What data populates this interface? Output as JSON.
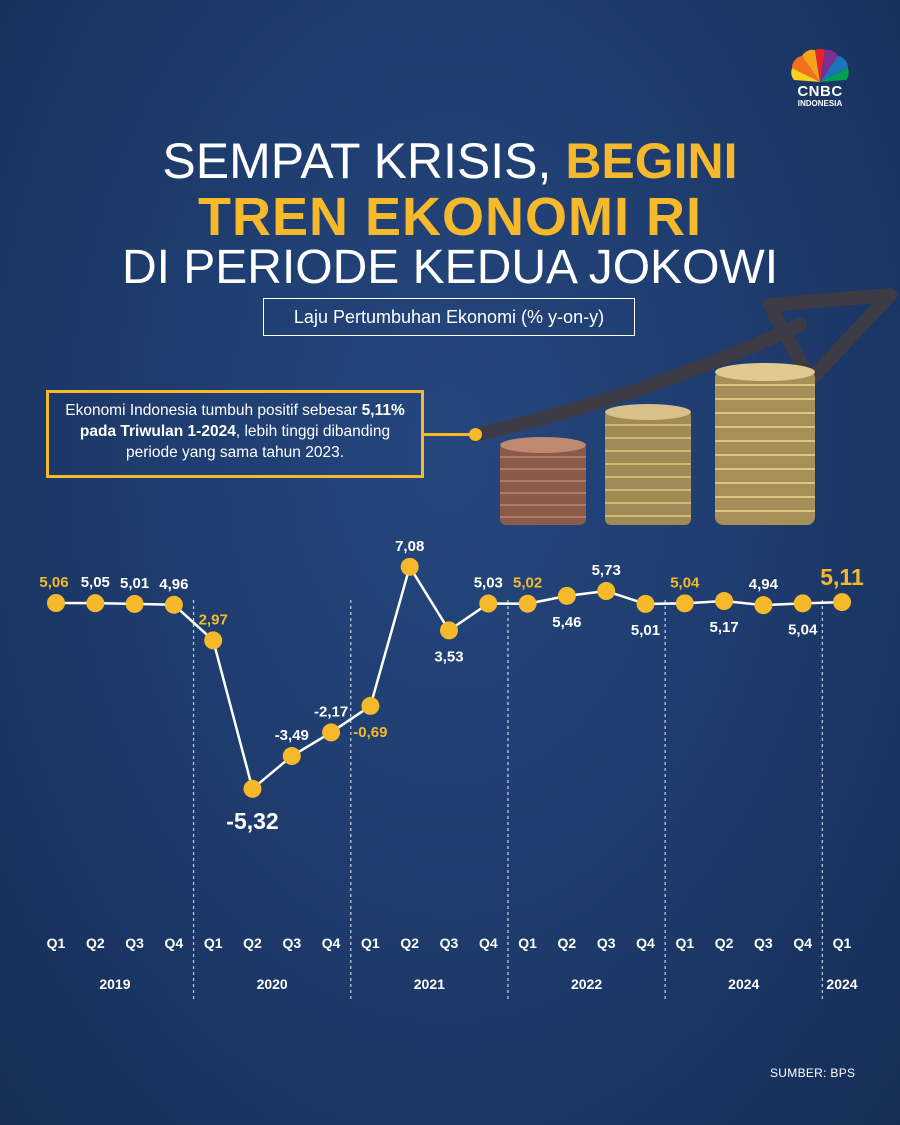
{
  "logo": {
    "text": "CNBC",
    "sub": "INDONESIA"
  },
  "title": {
    "line1_plain": "SEMPAT KRISIS, ",
    "line1_highlight": "BEGINI",
    "line2": "TREN EKONOMI RI",
    "line3": "DI PERIODE KEDUA JOKOWI"
  },
  "subtitle": "Laju Pertumbuhan Ekonomi (% y-on-y)",
  "callout": {
    "text_before": "Ekonomi Indonesia tumbuh positif sebesar ",
    "text_bold": "5,11% pada Triwulan 1-2024",
    "text_after": ", lebih tinggi dibanding periode yang sama tahun 2023."
  },
  "source": "SUMBER: BPS",
  "colors": {
    "accent": "#f6b92b",
    "background": "#1f3d70",
    "text": "#ffffff"
  },
  "chart_data": {
    "type": "line",
    "quarters": [
      "Q1",
      "Q2",
      "Q3",
      "Q4",
      "Q1",
      "Q2",
      "Q3",
      "Q4",
      "Q1",
      "Q2",
      "Q3",
      "Q4",
      "Q1",
      "Q2",
      "Q3",
      "Q4",
      "Q1",
      "Q2",
      "Q3",
      "Q4",
      "Q1"
    ],
    "values": [
      5.06,
      5.05,
      5.01,
      4.96,
      2.97,
      -5.32,
      -3.49,
      -2.17,
      -0.69,
      7.08,
      3.53,
      5.03,
      5.02,
      5.46,
      5.73,
      5.01,
      5.04,
      5.17,
      4.94,
      5.04,
      5.11
    ],
    "labels": [
      "5,06",
      "5,05",
      "5,01",
      "4,96",
      "2,97",
      "-5,32",
      "-3,49",
      "-2,17",
      "-0,69",
      "7,08",
      "3,53",
      "5,03",
      "5,02",
      "5,46",
      "5,73",
      "5,01",
      "5,04",
      "5,17",
      "4,94",
      "5,04",
      "5,11"
    ],
    "highlighted_labels": [
      0,
      4,
      8,
      12,
      16,
      20
    ],
    "emphasized_labels": [
      5,
      20
    ],
    "label_positions": [
      "above",
      "above",
      "above",
      "above",
      "above",
      "below",
      "above",
      "above",
      "below",
      "above",
      "below",
      "above",
      "above",
      "below",
      "above",
      "below",
      "above",
      "below",
      "above",
      "below",
      "above"
    ],
    "years": [
      {
        "label": "2019",
        "start": 0,
        "end": 3
      },
      {
        "label": "2020",
        "start": 4,
        "end": 7
      },
      {
        "label": "2021",
        "start": 8,
        "end": 11
      },
      {
        "label": "2022",
        "start": 12,
        "end": 15
      },
      {
        "label": "2024",
        "start": 16,
        "end": 19
      },
      {
        "label": "2024",
        "start": 20,
        "end": 20
      }
    ],
    "year_dividers_after": [
      3,
      7,
      11,
      15,
      19
    ],
    "grid": false
  }
}
